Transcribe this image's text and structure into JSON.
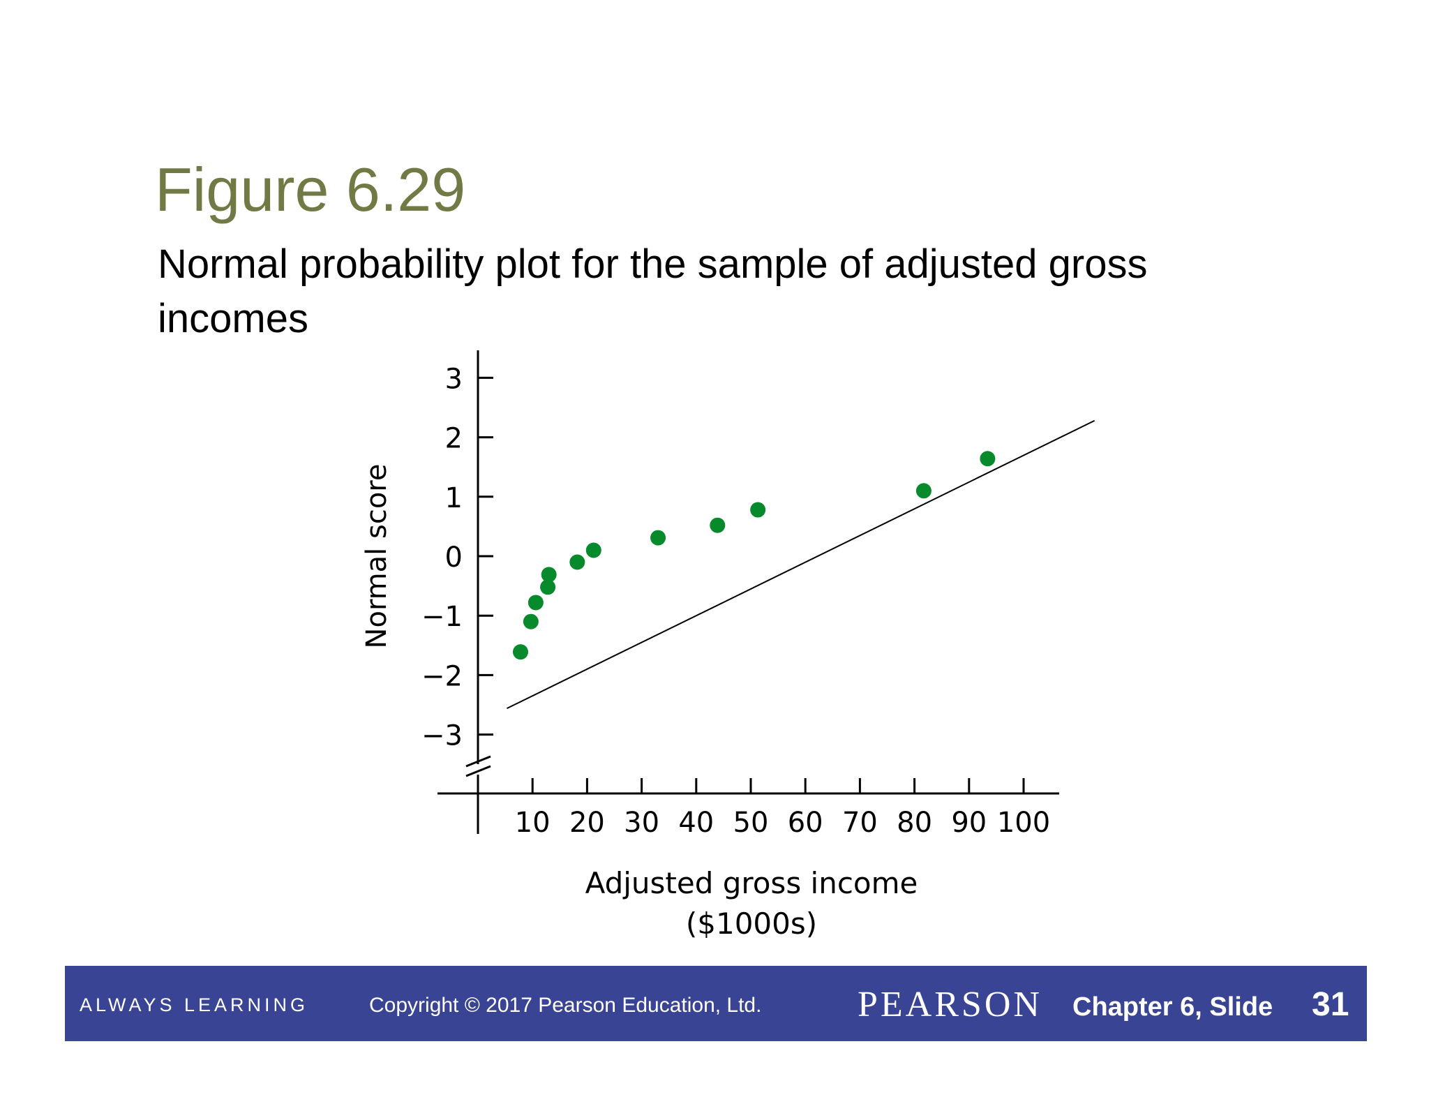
{
  "slide": {
    "title": "Figure 6.29",
    "subtitle": "Normal probability plot for the sample of adjusted gross incomes"
  },
  "footer": {
    "tagline": "ALWAYS LEARNING",
    "copyright": "Copyright © 2017 Pearson Education, Ltd.",
    "brand": "PEARSON",
    "chapter_slide": "Chapter 6,  Slide",
    "page_number": "31"
  },
  "colors": {
    "title": "#717a44",
    "points": "#078a2c",
    "footer_bg": "#3a4494"
  },
  "chart_data": {
    "type": "scatter",
    "xlabel": "Adjusted gross income",
    "xlabel_units": "($1000s)",
    "ylabel": "Normal score",
    "x_ticks": [
      10,
      20,
      30,
      40,
      50,
      60,
      70,
      80,
      90,
      100
    ],
    "y_ticks": [
      3,
      2,
      1,
      0,
      -1,
      -2,
      -3
    ],
    "y_tick_labels": [
      "3",
      "2",
      "1",
      "0",
      "−1",
      "−2",
      "−3"
    ],
    "xlim": [
      0,
      106
    ],
    "ylim": [
      -3.5,
      3.4
    ],
    "y_axis_break": true,
    "grid": false,
    "points": [
      {
        "x": 7.8,
        "y": -1.61
      },
      {
        "x": 9.7,
        "y": -1.1
      },
      {
        "x": 10.6,
        "y": -0.78
      },
      {
        "x": 12.8,
        "y": -0.52
      },
      {
        "x": 13.0,
        "y": -0.31
      },
      {
        "x": 18.2,
        "y": -0.1
      },
      {
        "x": 21.2,
        "y": 0.1
      },
      {
        "x": 33.0,
        "y": 0.31
      },
      {
        "x": 43.9,
        "y": 0.52
      },
      {
        "x": 51.3,
        "y": 0.78
      },
      {
        "x": 81.7,
        "y": 1.1
      },
      {
        "x": 93.4,
        "y": 1.64
      }
    ],
    "reference_line": {
      "x_start": 5.3,
      "y_start": -2.56,
      "x_end": 113,
      "y_end": 2.28
    }
  }
}
